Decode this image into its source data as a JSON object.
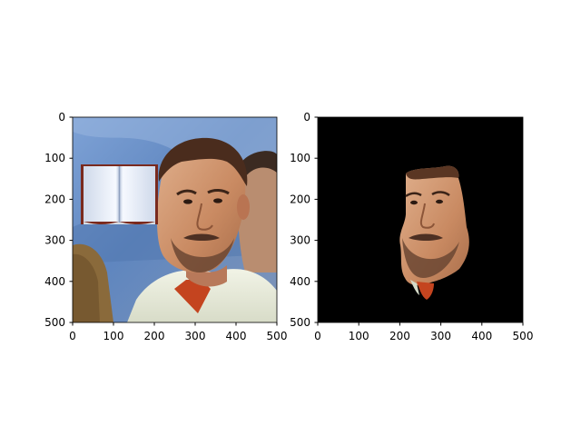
{
  "figure": {
    "panels": [
      {
        "id": "left",
        "content": "original photo with a pasted open-book image covering part of the left side",
        "x_ticks": [
          "0",
          "100",
          "200",
          "300",
          "400",
          "500"
        ],
        "y_ticks": [
          "0",
          "100",
          "200",
          "300",
          "400",
          "500"
        ]
      },
      {
        "id": "right",
        "content": "segmented face region on black background",
        "x_ticks": [
          "0",
          "100",
          "200",
          "300",
          "400",
          "500"
        ],
        "y_ticks": [
          "0",
          "100",
          "200",
          "300",
          "400",
          "500"
        ]
      }
    ]
  },
  "colors": {
    "photo_background": "#5f86bf",
    "black_background": "#000000",
    "skin": "#c98a62",
    "hair": "#4a2c1d",
    "shirt": "#e7ead9",
    "book_cover": "#7a2a1e",
    "book_page": "#eef3fb"
  }
}
